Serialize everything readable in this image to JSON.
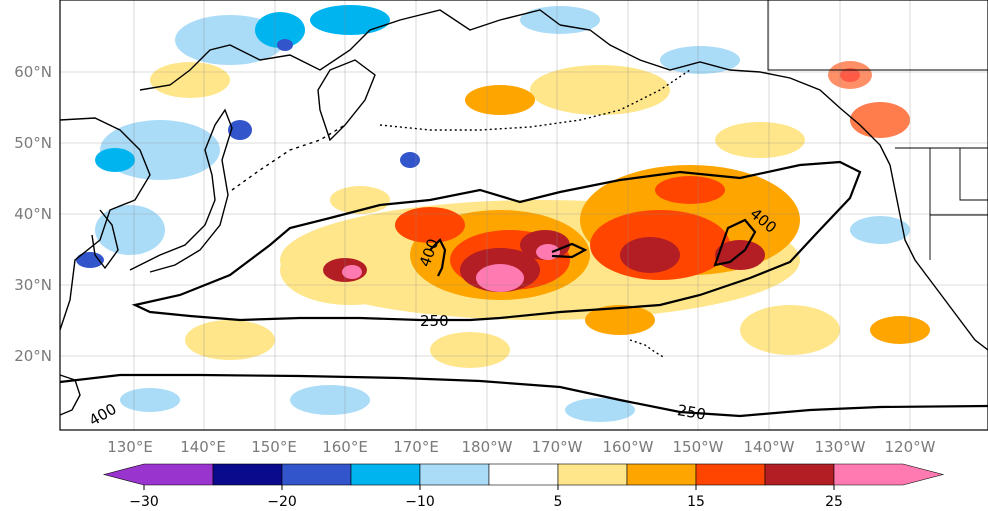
{
  "map": {
    "lat_labels": [
      "60°N",
      "50°N",
      "40°N",
      "30°N",
      "20°N"
    ],
    "lon_labels": [
      "130°E",
      "140°E",
      "150°E",
      "160°E",
      "170°E",
      "180°W",
      "170°W",
      "160°W",
      "150°W",
      "140°W",
      "130°W",
      "120°W"
    ],
    "contour_labels": {
      "c400_west": "400",
      "c400_east": "400",
      "c250_north": "250",
      "c400_south": "400",
      "c250_south": "250"
    }
  },
  "colorbar": {
    "tick_labels": [
      "−30",
      "−20",
      "−10",
      "5",
      "15",
      "25"
    ],
    "colors": [
      "#9a34cf",
      "#0a0a8c",
      "#3355cc",
      "#00b4f0",
      "#aadcf8",
      "#ffffff",
      "#ffe68a",
      "#ffa500",
      "#ff4500",
      "#b21e24",
      "#ff7ab0"
    ]
  }
}
